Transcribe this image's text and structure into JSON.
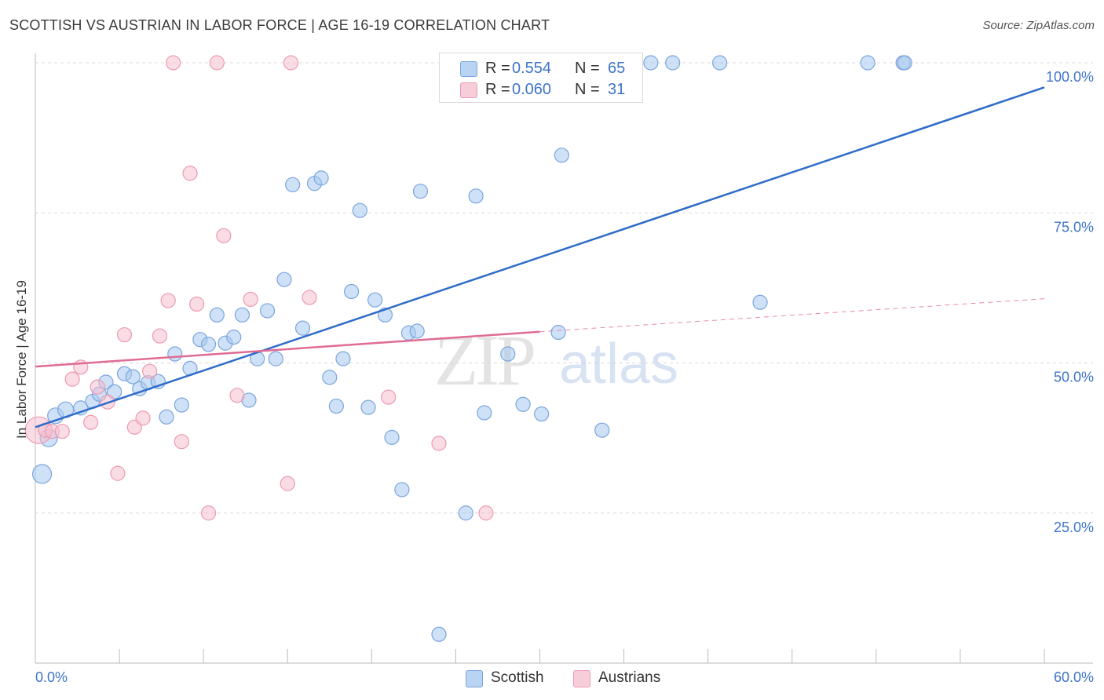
{
  "title": "SCOTTISH VS AUSTRIAN IN LABOR FORCE | AGE 16-19 CORRELATION CHART",
  "source": "Source: ZipAtlas.com",
  "watermark": {
    "zip": "ZIP",
    "atlas": "atlas"
  },
  "legend_top": {
    "rows": [
      {
        "r_label": "R =",
        "r_value": "0.554",
        "n_label": "N =",
        "n_value": "65",
        "color": "#a8c8f0"
      },
      {
        "r_label": "R =",
        "r_value": "0.060",
        "n_label": "N =",
        "n_value": "31",
        "color": "#f5b8c8"
      }
    ]
  },
  "legend_bottom": {
    "items": [
      {
        "label": "Scottish",
        "color": "#a8c8f0"
      },
      {
        "label": "Austrians",
        "color": "#f5b8c8"
      }
    ]
  },
  "colors": {
    "blue_fill": "#a8c8f0",
    "blue_stroke": "#7aa5dd",
    "blue_line": "#2f6cc9",
    "pink_fill": "#f5bfd0",
    "pink_stroke": "#ec9ab3",
    "pink_line": "#e06b93",
    "axis_text": "#3d74c9",
    "grid": "#d8d8d8"
  },
  "chart_data": {
    "type": "scatter",
    "title": "SCOTTISH VS AUSTRIAN IN LABOR FORCE | AGE 16-19 CORRELATION CHART",
    "xlabel": "",
    "ylabel": "In Labor Force | Age 16-19",
    "xlim": [
      0,
      60
    ],
    "ylim": [
      0,
      102
    ],
    "x_tick_labels": [
      "0.0%",
      "60.0%"
    ],
    "y_tick_labels": [
      "25.0%",
      "50.0%",
      "75.0%",
      "100.0%"
    ],
    "y_ticks": [
      25,
      50,
      75,
      100
    ],
    "grid": "horizontal dashed",
    "legend_placement": "top-center and bottom",
    "series": [
      {
        "name": "Scottish",
        "color": "#a8c8f0",
        "points": [
          [
            0.4,
            31.5,
            12
          ],
          [
            0.8,
            37.5,
            11
          ],
          [
            1.2,
            41.2,
            10
          ],
          [
            1.8,
            42.2,
            10
          ],
          [
            2.7,
            42.5,
            9
          ],
          [
            3.4,
            43.6,
            9
          ],
          [
            3.8,
            44.8,
            9
          ],
          [
            4.2,
            46.8,
            9
          ],
          [
            4.7,
            45.2,
            9
          ],
          [
            5.3,
            48.2,
            9
          ],
          [
            5.8,
            47.7,
            9
          ],
          [
            6.2,
            45.7,
            9
          ],
          [
            6.7,
            46.7,
            9
          ],
          [
            7.3,
            46.9,
            9
          ],
          [
            7.8,
            41.0,
            9
          ],
          [
            8.3,
            51.5,
            9
          ],
          [
            8.7,
            43.0,
            9
          ],
          [
            9.2,
            49.1,
            9
          ],
          [
            9.8,
            53.9,
            9
          ],
          [
            10.3,
            53.1,
            9
          ],
          [
            10.8,
            58.0,
            9
          ],
          [
            11.3,
            53.3,
            9
          ],
          [
            11.8,
            54.3,
            9
          ],
          [
            12.3,
            58.0,
            9
          ],
          [
            12.7,
            43.8,
            9
          ],
          [
            13.2,
            50.7,
            9
          ],
          [
            13.8,
            58.7,
            9
          ],
          [
            14.3,
            50.7,
            9
          ],
          [
            14.8,
            63.9,
            9
          ],
          [
            15.3,
            79.7,
            9
          ],
          [
            15.9,
            55.8,
            9
          ],
          [
            16.6,
            79.9,
            9
          ],
          [
            17.0,
            80.8,
            9
          ],
          [
            17.5,
            47.6,
            9
          ],
          [
            17.9,
            42.8,
            9
          ],
          [
            18.3,
            50.7,
            9
          ],
          [
            18.8,
            61.9,
            9
          ],
          [
            19.3,
            75.4,
            9
          ],
          [
            19.8,
            42.6,
            9
          ],
          [
            20.2,
            60.5,
            9
          ],
          [
            20.8,
            58.0,
            9
          ],
          [
            21.2,
            37.6,
            9
          ],
          [
            21.8,
            28.9,
            9
          ],
          [
            22.2,
            55.0,
            9
          ],
          [
            22.7,
            55.3,
            9
          ],
          [
            22.9,
            78.6,
            9
          ],
          [
            24.0,
            4.8,
            9
          ],
          [
            24.6,
            100.0,
            9
          ],
          [
            25.6,
            25.0,
            9
          ],
          [
            26.2,
            77.8,
            9
          ],
          [
            26.7,
            41.7,
            9
          ],
          [
            28.1,
            51.5,
            9
          ],
          [
            28.4,
            100.0,
            9
          ],
          [
            29.0,
            43.1,
            9
          ],
          [
            30.1,
            41.5,
            9
          ],
          [
            31.1,
            55.1,
            9
          ],
          [
            31.3,
            84.6,
            9
          ],
          [
            33.7,
            38.8,
            9
          ],
          [
            36.6,
            100.0,
            9
          ],
          [
            37.9,
            100.0,
            9
          ],
          [
            40.7,
            100.0,
            9
          ],
          [
            43.1,
            60.1,
            9
          ],
          [
            49.5,
            100.0,
            9
          ],
          [
            51.6,
            100.0,
            9
          ],
          [
            51.7,
            100.0,
            9
          ]
        ]
      },
      {
        "name": "Austrians",
        "color": "#f5b8c8",
        "points": [
          [
            0.2,
            38.8,
            17
          ],
          [
            0.6,
            38.8,
            9
          ],
          [
            1.0,
            38.6,
            9
          ],
          [
            1.6,
            38.6,
            9
          ],
          [
            2.2,
            47.3,
            9
          ],
          [
            2.7,
            49.3,
            9
          ],
          [
            3.3,
            40.1,
            9
          ],
          [
            3.7,
            46.0,
            9
          ],
          [
            4.3,
            43.5,
            9
          ],
          [
            4.9,
            31.6,
            9
          ],
          [
            5.3,
            54.7,
            9
          ],
          [
            5.9,
            39.3,
            9
          ],
          [
            6.4,
            40.8,
            9
          ],
          [
            6.8,
            48.6,
            9
          ],
          [
            7.4,
            54.5,
            9
          ],
          [
            7.9,
            60.4,
            9
          ],
          [
            8.2,
            100.0,
            9
          ],
          [
            8.7,
            36.9,
            9
          ],
          [
            9.2,
            81.6,
            9
          ],
          [
            9.6,
            59.8,
            9
          ],
          [
            10.3,
            25.0,
            9
          ],
          [
            10.8,
            100.0,
            9
          ],
          [
            11.2,
            71.2,
            9
          ],
          [
            12.0,
            44.6,
            9
          ],
          [
            12.8,
            60.6,
            9
          ],
          [
            15.0,
            29.9,
            9
          ],
          [
            15.2,
            100.0,
            9
          ],
          [
            16.3,
            60.9,
            9
          ],
          [
            21.0,
            44.3,
            9
          ],
          [
            24.0,
            36.6,
            9
          ],
          [
            26.8,
            25.0,
            9
          ]
        ]
      }
    ],
    "trend_lines": [
      {
        "series": "Scottish",
        "x": [
          0,
          60
        ],
        "y": [
          39.3,
          95.9
        ],
        "style": "solid"
      },
      {
        "series": "Austrians",
        "x": [
          0,
          30
        ],
        "y": [
          49.4,
          55.2
        ],
        "style": "solid"
      },
      {
        "series": "Austrians",
        "x": [
          30,
          60
        ],
        "y": [
          55.2,
          60.7
        ],
        "style": "dashed"
      }
    ]
  }
}
